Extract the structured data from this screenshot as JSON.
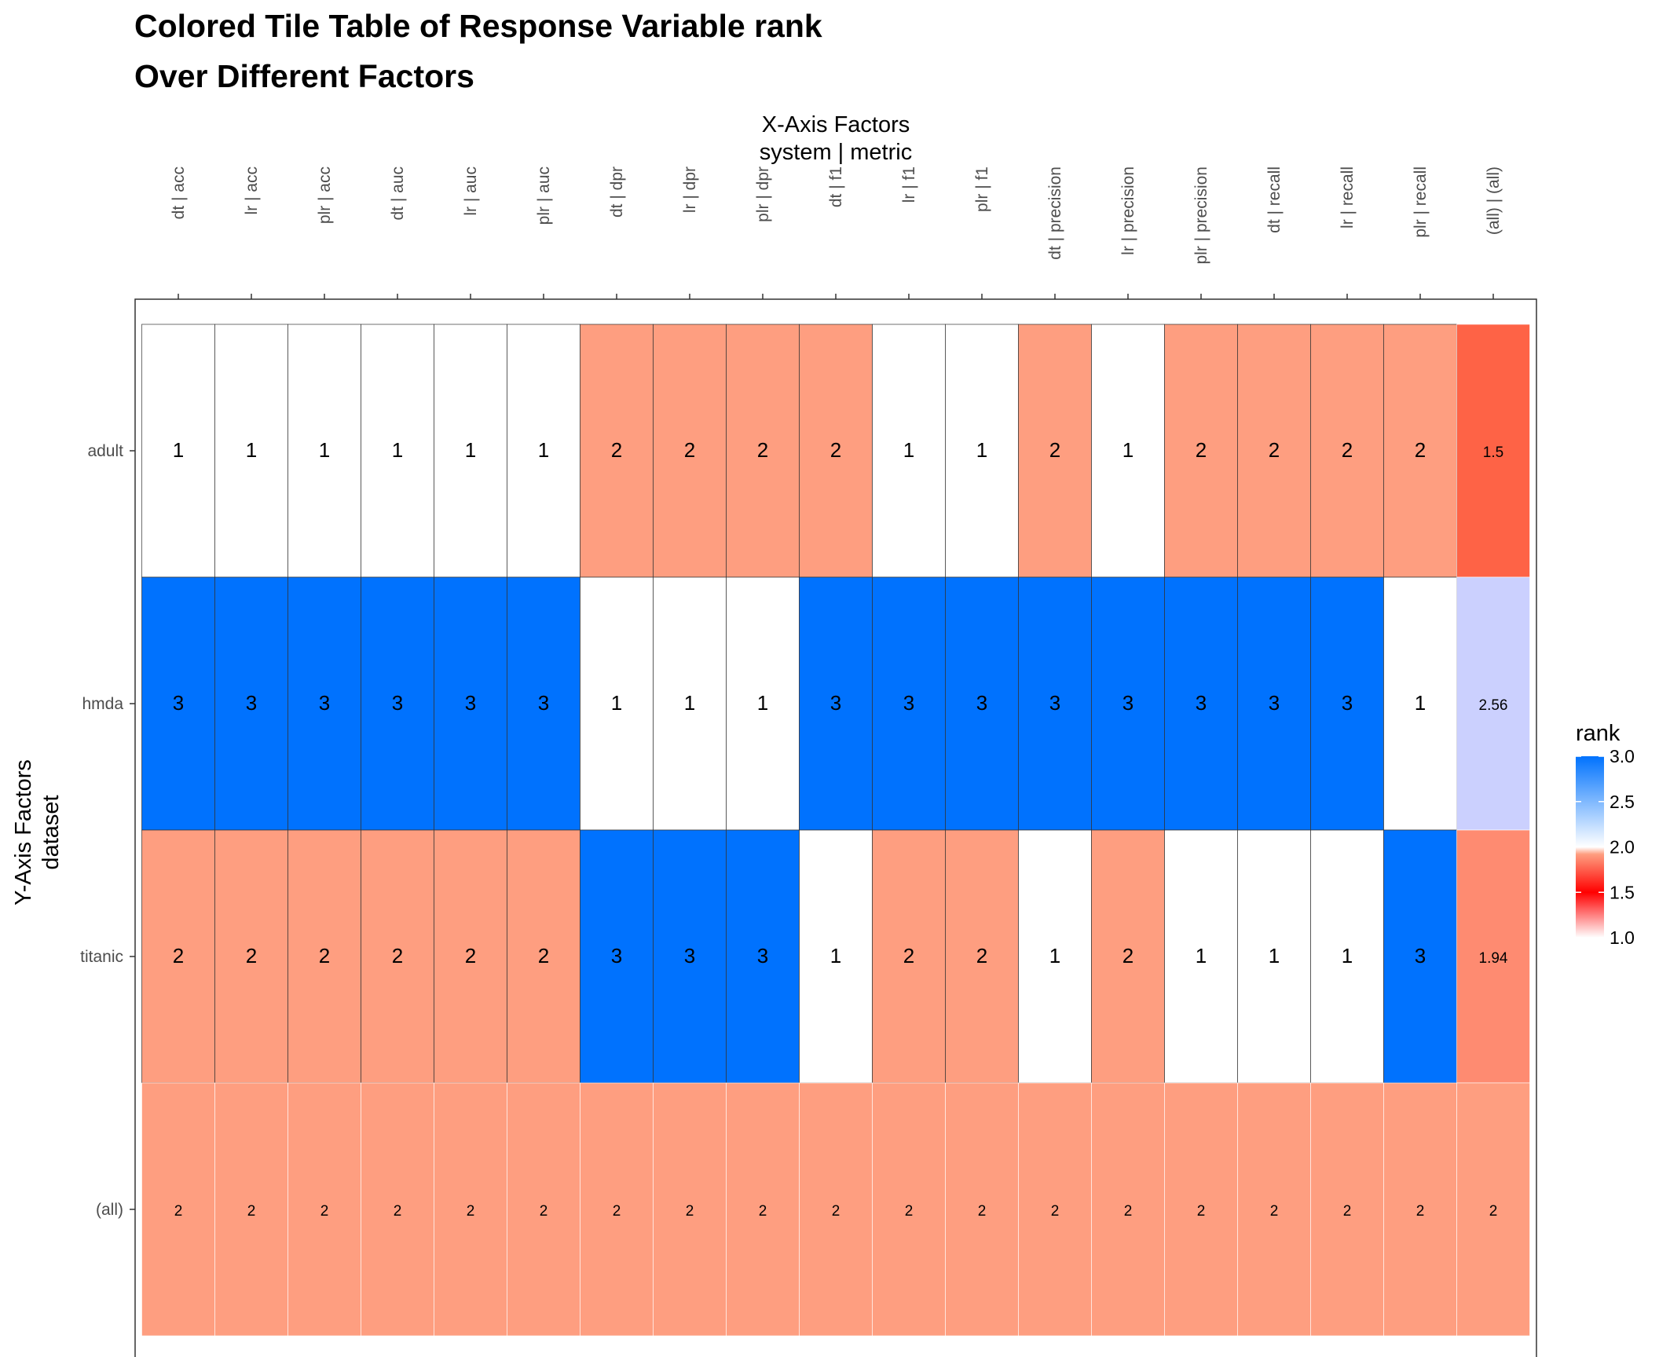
{
  "chart_data": {
    "type": "heatmap",
    "title": "Colored Tile Table of Response Variable rank",
    "subtitle": "Over Different Factors",
    "x_axis_title": [
      "X-Axis Factors",
      "system | metric"
    ],
    "y_axis_title": [
      "Y-Axis Factors",
      "dataset"
    ],
    "x_categories": [
      "dt | acc",
      "lr | acc",
      "plr | acc",
      "dt | auc",
      "lr | auc",
      "plr | auc",
      "dt | dpr",
      "lr | dpr",
      "plr | dpr",
      "dt | f1",
      "lr | f1",
      "plr | f1",
      "dt | precision",
      "lr | precision",
      "plr | precision",
      "dt | recall",
      "lr | recall",
      "plr | recall",
      "(all) | (all)"
    ],
    "y_categories": [
      "adult",
      "hmda",
      "titanic",
      "(all)"
    ],
    "values": [
      [
        1,
        1,
        1,
        1,
        1,
        1,
        2,
        2,
        2,
        2,
        1,
        1,
        2,
        1,
        2,
        2,
        2,
        2,
        1.5
      ],
      [
        3,
        3,
        3,
        3,
        3,
        3,
        1,
        1,
        1,
        3,
        3,
        3,
        3,
        3,
        3,
        3,
        3,
        1,
        2.56
      ],
      [
        2,
        2,
        2,
        2,
        2,
        2,
        3,
        3,
        3,
        1,
        2,
        2,
        1,
        2,
        1,
        1,
        1,
        3,
        1.94
      ],
      [
        2,
        2,
        2,
        2,
        2,
        2,
        2,
        2,
        2,
        2,
        2,
        2,
        2,
        2,
        2,
        2,
        2,
        2,
        2
      ]
    ],
    "legend": {
      "title": "rank",
      "position": "right",
      "range": [
        1.0,
        3.0
      ],
      "tick_labels": [
        "3.0",
        "2.5",
        "2.0",
        "1.5",
        "1.0"
      ]
    },
    "colors": {
      "cell_1": "#ffffff",
      "cell_1_5": "#fe6346",
      "cell_1_94": "#fe8b71",
      "cell_2": "#fe9e80",
      "cell_2_56": "#cbd0fe",
      "cell_3": "#0072fe",
      "scale_stops": [
        "#0072fe",
        "#ffffff",
        "#fe9e80",
        "#ff0000",
        "#ffffff"
      ]
    }
  }
}
